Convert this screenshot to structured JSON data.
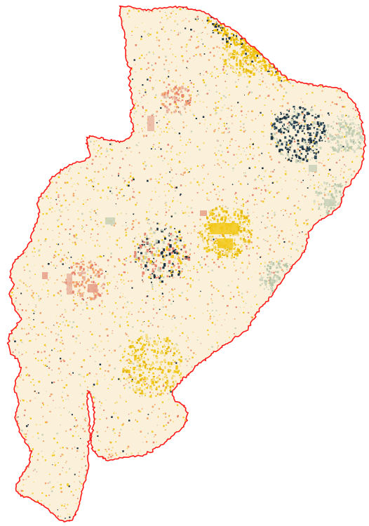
{
  "map": {
    "boundary_color": "#ff1a1a",
    "fill_color": "#fbf1da",
    "speckle_palette": [
      {
        "name": "yellow",
        "color": "#f2c81a",
        "weight": 0.3
      },
      {
        "name": "orange",
        "color": "#f3a468",
        "weight": 0.22
      },
      {
        "name": "salmon",
        "color": "#e8836d",
        "weight": 0.16
      },
      {
        "name": "sage",
        "color": "#c9d2b8",
        "weight": 0.14
      },
      {
        "name": "pale-yellow",
        "color": "#f6dc80",
        "weight": 0.12
      },
      {
        "name": "dark-navy",
        "color": "#1d3140",
        "weight": 0.06
      }
    ]
  }
}
